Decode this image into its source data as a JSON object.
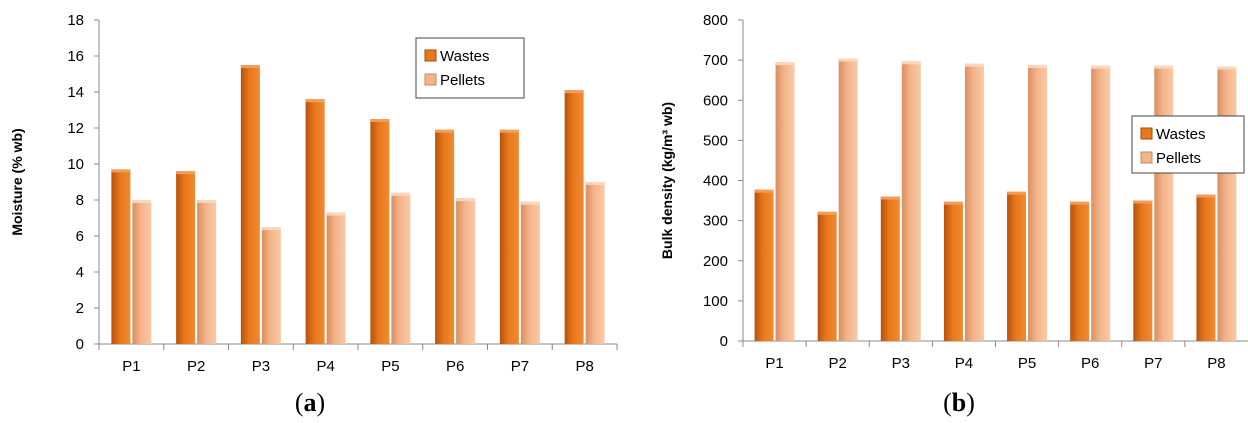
{
  "chart_data": [
    {
      "type": "bar",
      "panel_label": "a",
      "title": "",
      "xlabel": "",
      "ylabel": "Moisture (% wb)",
      "categories": [
        "P1",
        "P2",
        "P3",
        "P4",
        "P5",
        "P6",
        "P7",
        "P8"
      ],
      "series": [
        {
          "name": "Wastes",
          "values": [
            9.7,
            9.6,
            15.5,
            13.6,
            12.5,
            11.9,
            11.9,
            14.1
          ]
        },
        {
          "name": "Pellets",
          "values": [
            8.0,
            8.0,
            6.5,
            7.3,
            8.4,
            8.1,
            7.9,
            9.0
          ]
        }
      ],
      "ylim": [
        0,
        18
      ],
      "yticks": [
        0,
        2,
        4,
        6,
        8,
        10,
        12,
        14,
        16,
        18
      ],
      "legend_position": "top-right",
      "grid": false
    },
    {
      "type": "bar",
      "panel_label": "b",
      "title": "",
      "xlabel": "",
      "ylabel": "Bulk density (kg/m³ wb)",
      "categories": [
        "P1",
        "P2",
        "P3",
        "P4",
        "P5",
        "P6",
        "P7",
        "P8"
      ],
      "series": [
        {
          "name": "Wastes",
          "values": [
            377,
            322,
            360,
            347,
            372,
            347,
            350,
            365
          ]
        },
        {
          "name": "Pellets",
          "values": [
            695,
            704,
            697,
            691,
            688,
            686,
            686,
            684
          ]
        }
      ],
      "ylim": [
        0,
        800
      ],
      "yticks": [
        0,
        100,
        200,
        300,
        400,
        500,
        600,
        700,
        800
      ],
      "legend_position": "right",
      "grid": false
    }
  ],
  "colors": {
    "wastes": "#E8781C",
    "pellets": "#F4B48A"
  }
}
